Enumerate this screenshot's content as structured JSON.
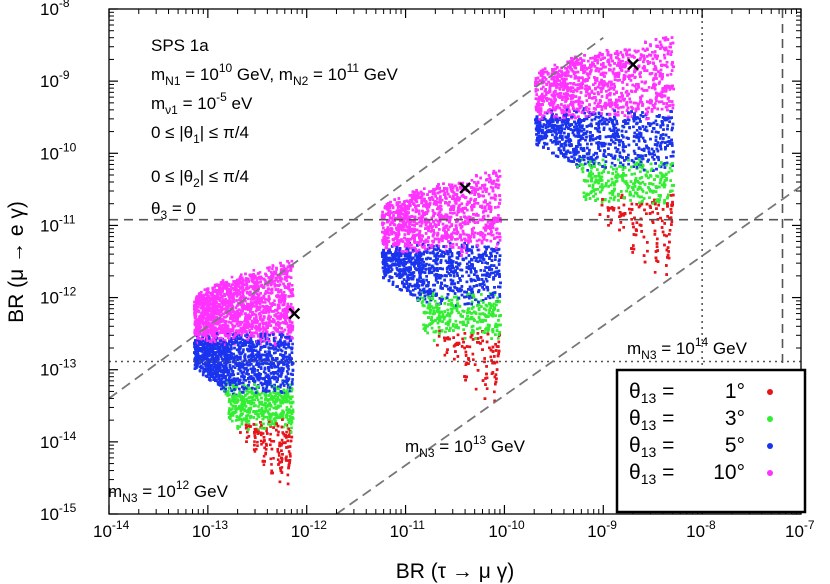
{
  "chart_data": {
    "type": "scatter",
    "title": "",
    "xlabel": "BR (τ → μ γ)",
    "ylabel": "BR (μ → e γ)",
    "xscale": "log",
    "yscale": "log",
    "xlim": [
      1e-14,
      1e-07
    ],
    "ylim": [
      1e-15,
      1e-08
    ],
    "x_ticks": [
      {
        "base": "10",
        "exp": "-14"
      },
      {
        "base": "10",
        "exp": "-13"
      },
      {
        "base": "10",
        "exp": "-12"
      },
      {
        "base": "10",
        "exp": "-11"
      },
      {
        "base": "10",
        "exp": "-10"
      },
      {
        "base": "10",
        "exp": "-9"
      },
      {
        "base": "10",
        "exp": "-8"
      },
      {
        "base": "10",
        "exp": "-7"
      }
    ],
    "y_ticks": [
      {
        "base": "10",
        "exp": "-15"
      },
      {
        "base": "10",
        "exp": "-14"
      },
      {
        "base": "10",
        "exp": "-13"
      },
      {
        "base": "10",
        "exp": "-12"
      },
      {
        "base": "10",
        "exp": "-11"
      },
      {
        "base": "10",
        "exp": "-10"
      },
      {
        "base": "10",
        "exp": "-9"
      },
      {
        "base": "10",
        "exp": "-8"
      }
    ],
    "grid": false,
    "legend_position": "bottom-right",
    "series": [
      {
        "name": "θ13 = 1°",
        "color": "#e8141c"
      },
      {
        "name": "θ13 = 3°",
        "color": "#33ee33"
      },
      {
        "name": "θ13 = 5°",
        "color": "#1a33ee"
      },
      {
        "name": "θ13 = 10°",
        "color": "#ff33ff"
      }
    ],
    "regions": [
      {
        "label": "mN3 = 10^12 GeV",
        "label_parts": {
          "prefix": "m",
          "sub": "N3",
          "mid": " = 10",
          "exp": "12",
          "suffix": " GeV"
        },
        "marker": {
          "x": 7.5e-13,
          "y": 6e-13
        },
        "band_log10_x": [
          -13.15,
          -12.15
        ],
        "top_log10_y": -11.8,
        "red_bottom_log10_y": -14.8
      },
      {
        "label": "mN3 = 10^13 GeV",
        "label_parts": {
          "prefix": "m",
          "sub": "N3",
          "mid": " = 10",
          "exp": "13",
          "suffix": " GeV"
        },
        "marker": {
          "x": 4e-11,
          "y": 3.3e-11
        },
        "band_log10_x": [
          -11.25,
          -10.05
        ],
        "top_log10_y": -10.55,
        "red_bottom_log10_y": -13.65
      },
      {
        "label": "mN3 = 10^14 GeV",
        "label_parts": {
          "prefix": "m",
          "sub": "N3",
          "mid": " = 10",
          "exp": "14",
          "suffix": " GeV"
        },
        "marker": {
          "x": 2e-09,
          "y": 1.7e-09
        },
        "band_log10_x": [
          -9.7,
          -8.3
        ],
        "top_log10_y": -8.7,
        "red_bottom_log10_y": -11.9
      }
    ],
    "reference_lines": [
      {
        "type": "horizontal",
        "style": "dashed",
        "y": 1.2e-11
      },
      {
        "type": "horizontal",
        "style": "dotted",
        "y": 1.3e-13
      },
      {
        "type": "vertical",
        "style": "dotted",
        "x": 1e-08
      },
      {
        "type": "vertical",
        "style": "dashed",
        "x": 6.5e-08
      }
    ],
    "diagonal_guides": [
      {
        "style": "dashed",
        "x1": 1e-14,
        "y1": 4e-14,
        "x2": 1e-09,
        "y2": 4e-09
      },
      {
        "style": "dashed",
        "x1": 2e-12,
        "y1": 1e-15,
        "x2": 1e-07,
        "y2": 3.5e-11
      }
    ],
    "annotations": [
      {
        "text": "SPS 1a"
      },
      {
        "parts": [
          {
            "t": "m"
          },
          {
            "sub": "N1"
          },
          {
            "t": " = 10"
          },
          {
            "sup": "10"
          },
          {
            "t": " GeV, m"
          },
          {
            "sub": "N2"
          },
          {
            "t": " = 10"
          },
          {
            "sup": "11"
          },
          {
            "t": " GeV"
          }
        ]
      },
      {
        "parts": [
          {
            "t": "m"
          },
          {
            "sub": "ν1"
          },
          {
            "t": " = 10"
          },
          {
            "sup": "-5"
          },
          {
            "t": " eV"
          }
        ]
      },
      {
        "parts": [
          {
            "t": "0 ≤ |θ"
          },
          {
            "sub": "1"
          },
          {
            "t": "| ≤ π/4"
          }
        ]
      },
      {
        "parts": [
          {
            "t": "0 ≤ |θ"
          },
          {
            "sub": "2"
          },
          {
            "t": "| ≤ π/4"
          }
        ]
      },
      {
        "parts": [
          {
            "t": "θ"
          },
          {
            "sub": "3"
          },
          {
            "t": " = 0"
          }
        ]
      }
    ],
    "legend_entries": [
      {
        "symbol": "θ",
        "sub": "13",
        "eq": " =",
        "value": "1°",
        "color": "#e8141c"
      },
      {
        "symbol": "θ",
        "sub": "13",
        "eq": " =",
        "value": "3°",
        "color": "#33ee33"
      },
      {
        "symbol": "θ",
        "sub": "13",
        "eq": " =",
        "value": "5°",
        "color": "#1a33ee"
      },
      {
        "symbol": "θ",
        "sub": "13",
        "eq": " =",
        "value": "10°",
        "color": "#ff33ff"
      }
    ]
  }
}
